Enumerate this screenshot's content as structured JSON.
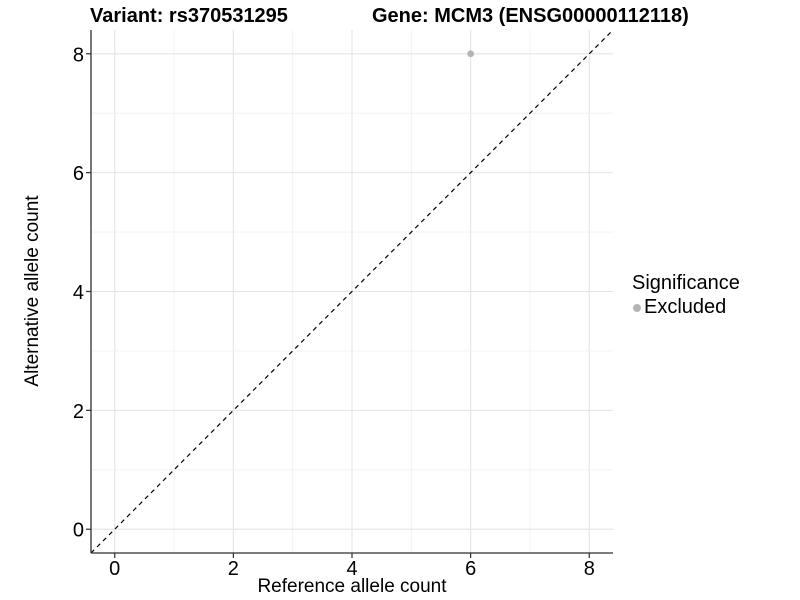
{
  "titles": {
    "variant": "Variant: rs370531295",
    "gene": "Gene: MCM3 (ENSG00000112118)"
  },
  "axes": {
    "x_label": "Reference allele count",
    "y_label": "Alternative allele count"
  },
  "legend": {
    "title": "Significance",
    "items": [
      {
        "label": "Excluded",
        "color": "#b4b4b4"
      }
    ]
  },
  "chart_data": {
    "type": "scatter",
    "title": "Variant: rs370531295 / Gene: MCM3 (ENSG00000112118)",
    "xlabel": "Reference allele count",
    "ylabel": "Alternative allele count",
    "series": [
      {
        "name": "Excluded",
        "color": "#b4b4b4",
        "points": [
          {
            "x": 6,
            "y": 8
          }
        ]
      }
    ],
    "abline": {
      "slope": 1,
      "intercept": 0,
      "style": "dashed",
      "color": "#000000"
    },
    "xlim": [
      -0.4,
      8.4
    ],
    "ylim": [
      -0.4,
      8.4
    ],
    "x_ticks": [
      0,
      2,
      4,
      6,
      8
    ],
    "y_ticks": [
      0,
      2,
      4,
      6,
      8
    ],
    "minor_step": 1,
    "grid": "on",
    "legend_position": "right",
    "colors": {
      "major_grid": "#e4e4e4",
      "minor_grid": "#f0f0f0",
      "axis_line": "#2f2f2f",
      "tick_text": "#000000",
      "point": "#b4b4b4"
    }
  }
}
